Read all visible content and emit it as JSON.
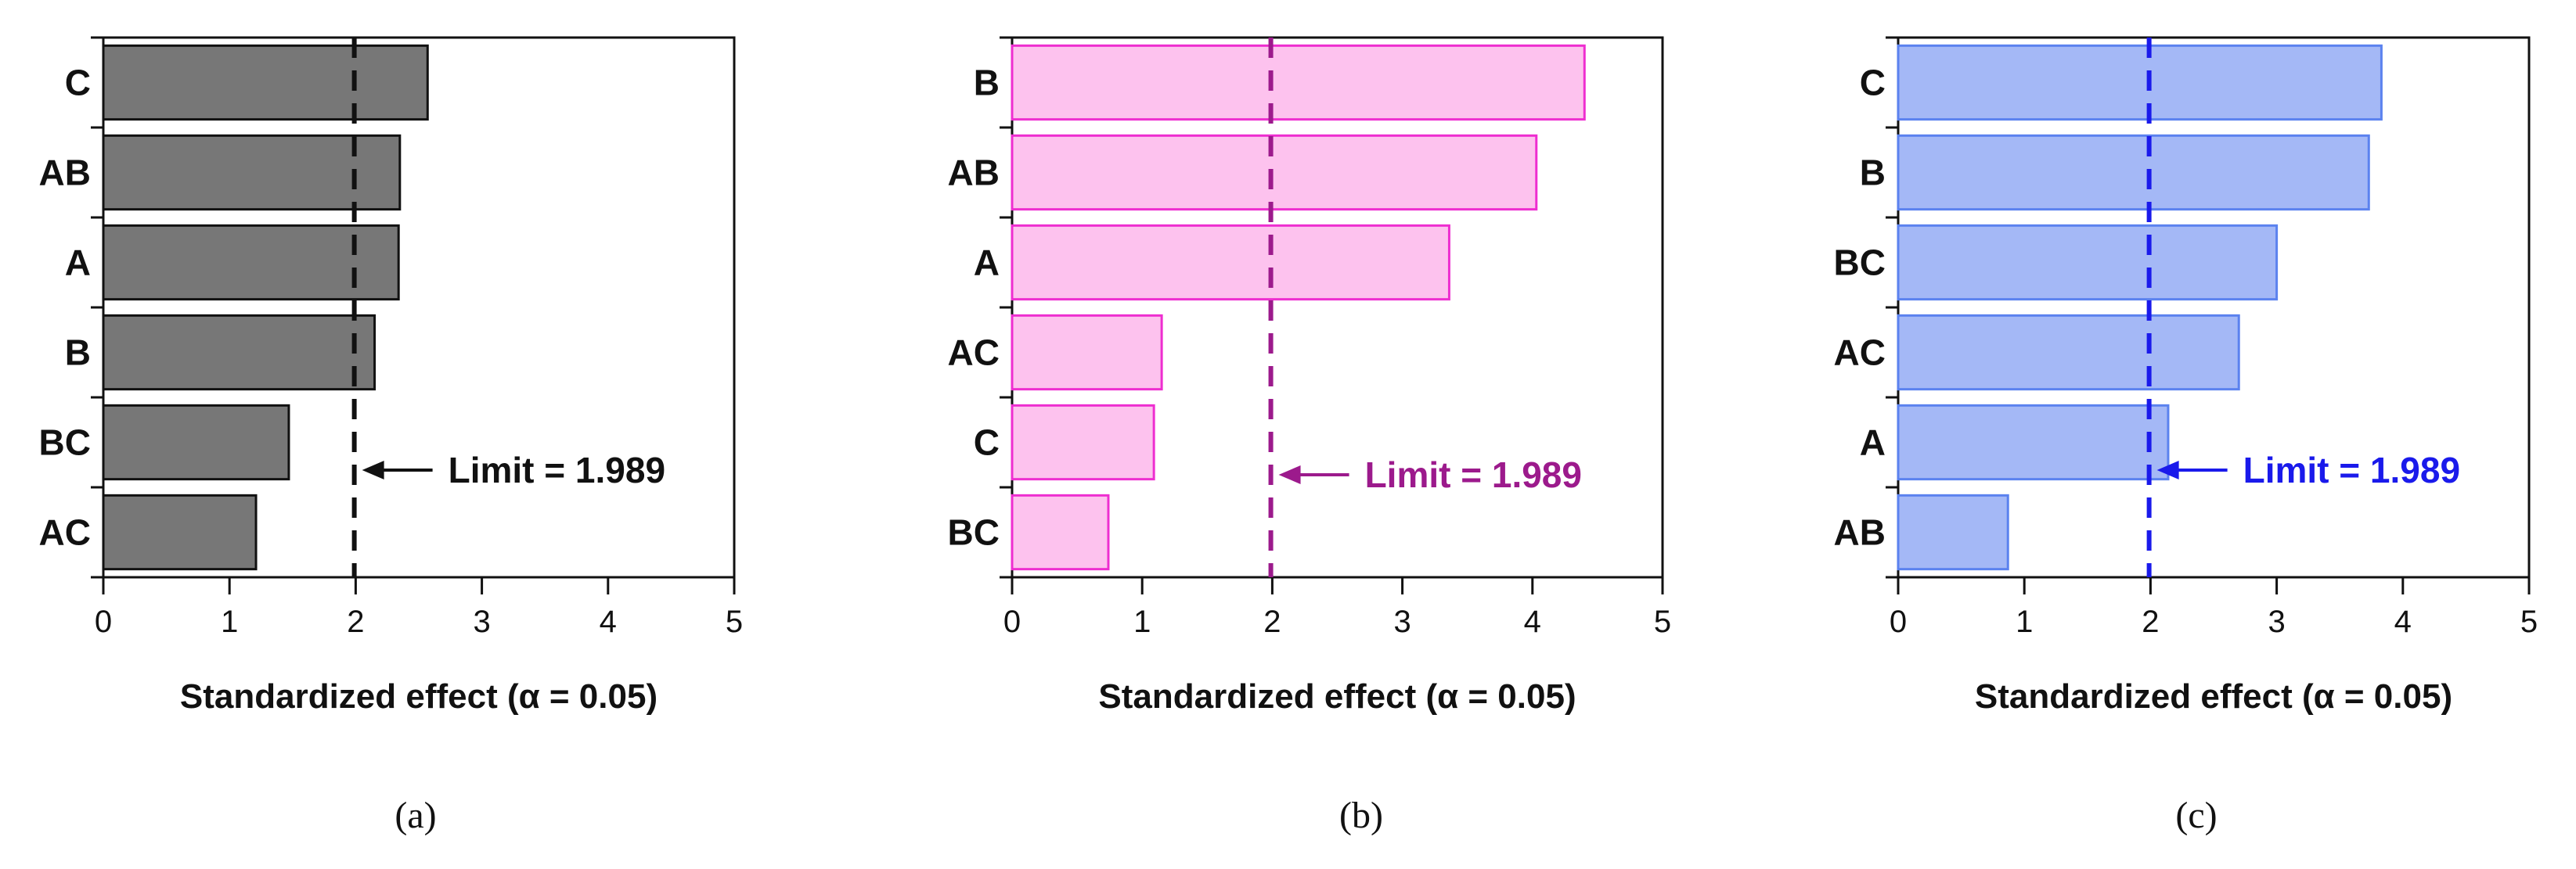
{
  "chart_data": [
    {
      "type": "bar",
      "orientation": "horizontal",
      "panel_label": "(a)",
      "categories": [
        "C",
        "AB",
        "A",
        "B",
        "BC",
        "AC"
      ],
      "values": [
        2.57,
        2.35,
        2.34,
        2.15,
        1.47,
        1.21
      ],
      "xlabel": "Standardized effect (α = 0.05)",
      "xlim": [
        0,
        5
      ],
      "xticks": [
        "0",
        "1",
        "2",
        "3",
        "4",
        "5"
      ],
      "reference_line": {
        "value": 1.989,
        "label": "Limit = 1.989"
      },
      "colors": {
        "fill": "#777777",
        "stroke": "#111111",
        "accent": "#111111"
      }
    },
    {
      "type": "bar",
      "orientation": "horizontal",
      "panel_label": "(b)",
      "categories": [
        "B",
        "AB",
        "A",
        "AC",
        "C",
        "BC"
      ],
      "values": [
        4.4,
        4.03,
        3.36,
        1.15,
        1.09,
        0.74
      ],
      "xlabel": "Standardized effect (α = 0.05)",
      "xlim": [
        0,
        5
      ],
      "xticks": [
        "0",
        "1",
        "2",
        "3",
        "4",
        "5"
      ],
      "reference_line": {
        "value": 1.989,
        "label": "Limit = 1.989"
      },
      "colors": {
        "fill": "#fdc2ee",
        "stroke": "#ee2ed0",
        "accent": "#9c1a8c"
      }
    },
    {
      "type": "bar",
      "orientation": "horizontal",
      "panel_label": "(c)",
      "categories": [
        "C",
        "B",
        "BC",
        "AC",
        "A",
        "AB"
      ],
      "values": [
        3.83,
        3.73,
        3.0,
        2.7,
        2.14,
        0.87
      ],
      "xlabel": "Standardized effect (α = 0.05)",
      "xlim": [
        0,
        5
      ],
      "xticks": [
        "0",
        "1",
        "2",
        "3",
        "4",
        "5"
      ],
      "reference_line": {
        "value": 1.989,
        "label": "Limit = 1.989"
      },
      "colors": {
        "fill": "#a4b8f6",
        "stroke": "#5b82ef",
        "accent": "#1a1aeb"
      }
    }
  ]
}
